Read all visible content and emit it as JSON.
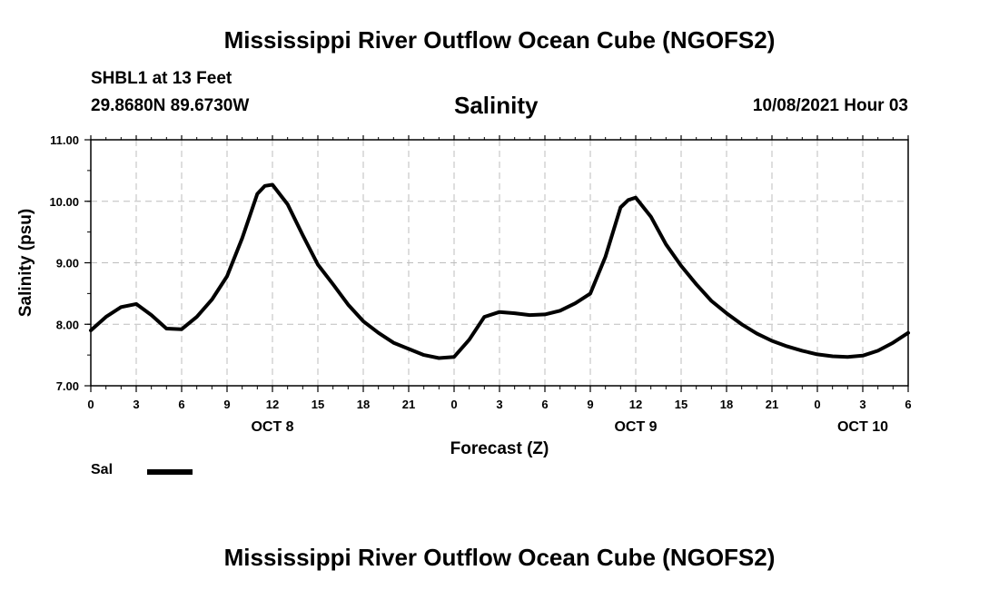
{
  "header": {
    "title": "Mississippi River Outflow Ocean Cube (NGOFS2)",
    "station": "SHBL1 at 13 Feet",
    "coords": "29.8680N  89.6730W",
    "subtitle": "Salinity",
    "datetime": "10/08/2021 Hour 03"
  },
  "footer": {
    "title": "Mississippi River Outflow Ocean Cube (NGOFS2)"
  },
  "legend": {
    "label": "Sal",
    "color": "#000000"
  },
  "chart_data": {
    "type": "line",
    "title": "Salinity",
    "xlabel": "Forecast (Z)",
    "ylabel": "Salinity (psu)",
    "ylim": [
      7.0,
      11.0
    ],
    "xlim": [
      0,
      54
    ],
    "grid": true,
    "legend_position": "bottom-left",
    "yticks": [
      {
        "value": 7,
        "label": "7.00"
      },
      {
        "value": 8,
        "label": "8.00"
      },
      {
        "value": 9,
        "label": "9.00"
      },
      {
        "value": 10,
        "label": "10.00"
      },
      {
        "value": 11,
        "label": "11.00"
      }
    ],
    "xticks": [
      {
        "hour": 0,
        "label": "0"
      },
      {
        "hour": 3,
        "label": "3"
      },
      {
        "hour": 6,
        "label": "6"
      },
      {
        "hour": 9,
        "label": "9"
      },
      {
        "hour": 12,
        "label": "12"
      },
      {
        "hour": 15,
        "label": "15"
      },
      {
        "hour": 18,
        "label": "18"
      },
      {
        "hour": 21,
        "label": "21"
      },
      {
        "hour": 24,
        "label": "0"
      },
      {
        "hour": 27,
        "label": "3"
      },
      {
        "hour": 30,
        "label": "6"
      },
      {
        "hour": 33,
        "label": "9"
      },
      {
        "hour": 36,
        "label": "12"
      },
      {
        "hour": 39,
        "label": "15"
      },
      {
        "hour": 42,
        "label": "18"
      },
      {
        "hour": 45,
        "label": "21"
      },
      {
        "hour": 48,
        "label": "0"
      },
      {
        "hour": 51,
        "label": "3"
      },
      {
        "hour": 54,
        "label": "6"
      }
    ],
    "day_labels": [
      {
        "hour": 12,
        "label": "OCT 8"
      },
      {
        "hour": 36,
        "label": "OCT 9"
      },
      {
        "hour": 51,
        "label": "OCT 10"
      }
    ],
    "series": [
      {
        "name": "Sal",
        "x": [
          0,
          1,
          2,
          3,
          4,
          5,
          6,
          7,
          8,
          9,
          10,
          11,
          11.5,
          12,
          13,
          14,
          15,
          16,
          17,
          18,
          19,
          20,
          21,
          22,
          23,
          24,
          25,
          26,
          27,
          28,
          29,
          30,
          31,
          32,
          33,
          34,
          35,
          35.5,
          36,
          37,
          38,
          39,
          40,
          41,
          42,
          43,
          44,
          45,
          46,
          47,
          48,
          49,
          50,
          51,
          52,
          53,
          54
        ],
        "y": [
          7.9,
          8.12,
          8.28,
          8.33,
          8.15,
          7.93,
          7.92,
          8.12,
          8.4,
          8.78,
          9.4,
          10.12,
          10.25,
          10.27,
          9.95,
          9.45,
          8.97,
          8.65,
          8.32,
          8.05,
          7.86,
          7.7,
          7.6,
          7.5,
          7.45,
          7.47,
          7.75,
          8.12,
          8.2,
          8.18,
          8.15,
          8.16,
          8.22,
          8.34,
          8.5,
          9.1,
          9.9,
          10.02,
          10.06,
          9.75,
          9.3,
          8.95,
          8.65,
          8.38,
          8.18,
          8.0,
          7.85,
          7.73,
          7.64,
          7.57,
          7.51,
          7.48,
          7.47,
          7.49,
          7.57,
          7.7,
          7.86
        ]
      }
    ]
  }
}
